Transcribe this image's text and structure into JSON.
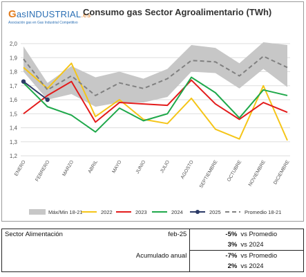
{
  "logo": {
    "g": "G",
    "name": "as",
    "brand": "INDUSTRIAL",
    "tld": ".es",
    "tagline": "Asociación gas en Gas Industrial Competitivo"
  },
  "chart_data": {
    "type": "line",
    "title": "Consumo gas Sector Agroalimentario (TWh)",
    "categories": [
      "ENERO",
      "FEBRERO",
      "MARZO",
      "ABRIL",
      "MAYO",
      "JUNIO",
      "JULIO",
      "AGOSTO",
      "SEPTIEMBRE",
      "OCTUBRE",
      "NOVIEMBRE",
      "DICIEMBRE"
    ],
    "yticks": [
      "1,2",
      "1,3",
      "1,4",
      "1,5",
      "1,6",
      "1,7",
      "1,8",
      "1,9",
      "2,0"
    ],
    "ylim": [
      1.2,
      2.0
    ],
    "grid": true,
    "legend_position": "bottom",
    "band": {
      "name": "Máx/Min 18-21",
      "color": "#c7c7c7",
      "max": [
        1.98,
        1.72,
        1.84,
        1.76,
        1.8,
        1.75,
        1.82,
        1.99,
        1.97,
        1.86,
        2.01,
        1.99
      ],
      "min": [
        1.8,
        1.6,
        1.64,
        1.55,
        1.58,
        1.58,
        1.62,
        1.8,
        1.79,
        1.68,
        1.82,
        1.69
      ]
    },
    "series": [
      {
        "name": "2022",
        "color": "#f5c518",
        "dash": "",
        "values": [
          1.83,
          1.68,
          1.86,
          1.48,
          1.6,
          1.46,
          1.43,
          1.61,
          1.39,
          1.32,
          1.7,
          1.31
        ]
      },
      {
        "name": "2023",
        "color": "#e31b1b",
        "dash": "",
        "values": [
          1.5,
          1.63,
          1.73,
          1.44,
          1.58,
          1.57,
          1.56,
          1.74,
          1.57,
          1.46,
          1.58,
          1.51
        ]
      },
      {
        "name": "2024",
        "color": "#1ea84a",
        "dash": "",
        "values": [
          1.72,
          1.55,
          1.49,
          1.37,
          1.54,
          1.45,
          1.5,
          1.76,
          1.65,
          1.47,
          1.67,
          1.63
        ]
      },
      {
        "name": "2025",
        "color": "#2b3a67",
        "dash": "",
        "markers": true,
        "values": [
          1.73,
          1.6,
          null,
          null,
          null,
          null,
          null,
          null,
          null,
          null,
          null,
          null
        ]
      },
      {
        "name": "Promedio 18-21",
        "color": "#808080",
        "dash": "6,4",
        "values": [
          1.89,
          1.67,
          1.77,
          1.63,
          1.72,
          1.68,
          1.75,
          1.88,
          1.87,
          1.77,
          1.91,
          1.83
        ]
      }
    ]
  },
  "table": {
    "label": "Sector Alimentación",
    "period": "feb-25",
    "cumulative_label": "Acumulado anual",
    "rows": [
      {
        "value": "-5%",
        "comparison": "vs Promedio"
      },
      {
        "value": "3%",
        "comparison": "vs 2024"
      },
      {
        "value": "-7%",
        "comparison": "vs Promedio"
      },
      {
        "value": "2%",
        "comparison": "vs 2024"
      }
    ]
  }
}
